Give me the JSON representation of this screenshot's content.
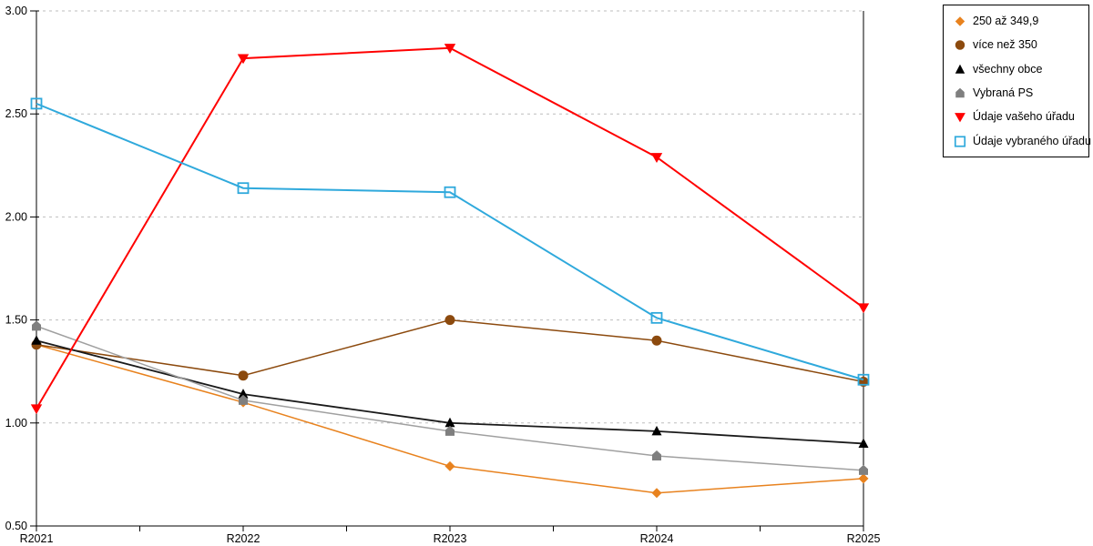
{
  "chart_data": {
    "type": "line",
    "title": "",
    "xlabel": "",
    "ylabel": "",
    "categories": [
      "R2021",
      "R2022",
      "R2023",
      "R2024",
      "R2025"
    ],
    "ylim": [
      0.5,
      3.0
    ],
    "ytick_step": 0.5,
    "ytick_format_decimals": 2,
    "grid": "horizontal-dashed",
    "legend_position": "outside-top-right",
    "series": [
      {
        "name": "250 až 349,9",
        "marker": "diamond",
        "color": "#E8821E",
        "line_color": "#E8821E",
        "line_width": 1.5,
        "values": [
          1.38,
          1.1,
          0.79,
          0.66,
          0.73
        ]
      },
      {
        "name": "více než 350",
        "marker": "circle",
        "color": "#8C4A0E",
        "line_color": "#8C4A0E",
        "line_width": 1.5,
        "values": [
          1.38,
          1.23,
          1.5,
          1.4,
          1.2
        ]
      },
      {
        "name": "všechny obce",
        "marker": "triangle-up",
        "color": "#000000",
        "line_color": "#1A1A1A",
        "line_width": 1.8,
        "values": [
          1.4,
          1.14,
          1.0,
          0.96,
          0.9
        ]
      },
      {
        "name": "Vybraná PS",
        "marker": "pentagon",
        "color": "#7F7F7F",
        "line_color": "#A0A0A0",
        "line_width": 1.5,
        "values": [
          1.47,
          1.11,
          0.96,
          0.84,
          0.77
        ]
      },
      {
        "name": "Údaje vašeho úřadu",
        "marker": "triangle-down",
        "color": "#FF0000",
        "line_color": "#FF0000",
        "line_width": 2,
        "values": [
          1.07,
          2.77,
          2.82,
          2.29,
          1.56
        ]
      },
      {
        "name": "Údaje vybraného úřadu",
        "marker": "square-open",
        "color": "#2FA9DC",
        "line_color": "#2FA9DC",
        "line_width": 2,
        "values": [
          2.55,
          2.14,
          2.12,
          1.51,
          1.21
        ]
      }
    ]
  },
  "axis_colors": {
    "axis_line": "#000000",
    "gridline": "#BEBEBE",
    "tick_label": "#000000"
  }
}
